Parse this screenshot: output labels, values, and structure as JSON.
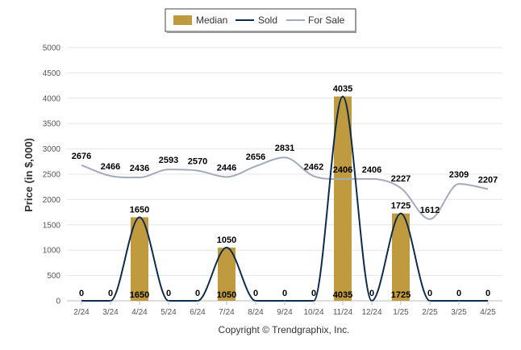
{
  "chart_data": {
    "type": "bar",
    "ylabel": "Price (in $,000)",
    "ylim": [
      0,
      5000
    ],
    "yticks": [
      0,
      500,
      1000,
      1500,
      2000,
      2500,
      3000,
      3500,
      4000,
      4500,
      5000
    ],
    "categories": [
      "2/24",
      "3/24",
      "4/24",
      "5/24",
      "6/24",
      "7/24",
      "8/24",
      "9/24",
      "10/24",
      "11/24",
      "12/24",
      "1/25",
      "2/25",
      "3/25",
      "4/25"
    ],
    "grid": true,
    "legend_position": "top-center",
    "series": [
      {
        "name": "Median",
        "kind": "bar",
        "color": "#C09A3E",
        "values": [
          0,
          0,
          1650,
          0,
          0,
          1050,
          0,
          0,
          0,
          4035,
          0,
          1725,
          0,
          0,
          0
        ],
        "labels": [
          "",
          "",
          "1650",
          "",
          "",
          "1050",
          "",
          "",
          "",
          "4035",
          "",
          "1725",
          "",
          "",
          ""
        ]
      },
      {
        "name": "Sold",
        "kind": "line",
        "color": "#0D2B4E",
        "values": [
          0,
          0,
          1650,
          0,
          0,
          1050,
          0,
          0,
          0,
          4035,
          0,
          1725,
          0,
          0,
          0
        ],
        "labels": [
          "0",
          "0",
          "1650",
          "0",
          "0",
          "1050",
          "0",
          "0",
          "0",
          "4035",
          "0",
          "1725",
          "0",
          "0",
          "0"
        ]
      },
      {
        "name": "For Sale",
        "kind": "line",
        "color": "#A3ABBB",
        "values": [
          2676,
          2466,
          2436,
          2593,
          2570,
          2446,
          2656,
          2831,
          2462,
          2406,
          2406,
          2227,
          1612,
          2309,
          2207
        ],
        "labels": [
          "2676",
          "2466",
          "2436",
          "2593",
          "2570",
          "2446",
          "2656",
          "2831",
          "2462",
          "2406",
          "2406",
          "2227",
          "1612",
          "2309",
          "2207"
        ]
      }
    ]
  },
  "credit": "Copyright © Trendgraphix, Inc."
}
